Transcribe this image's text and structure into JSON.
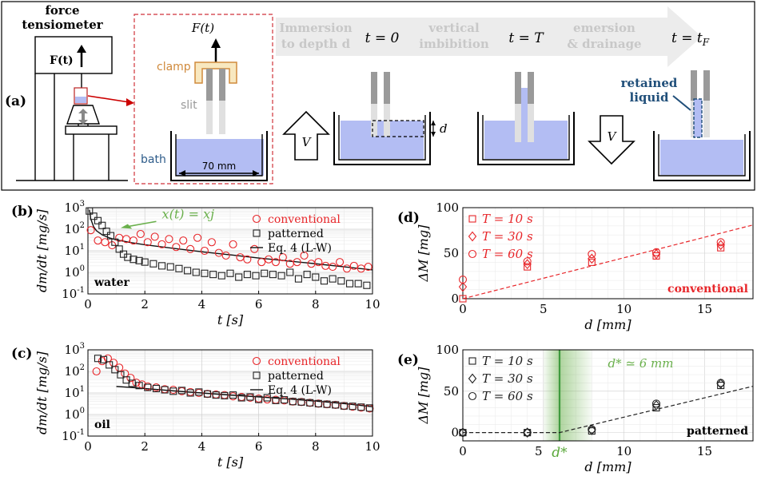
{
  "panel_a": {
    "label": "(a)",
    "tensiometer_title_1": "force",
    "tensiometer_title_2": "tensiometer",
    "force_label": "F(t)",
    "inset_force": "F(t)",
    "clamp": "clamp",
    "slit": "slit",
    "bath": "bath",
    "bath_width": "70 mm",
    "stage_immersion": "Immersion",
    "stage_immersion_2": "to depth d",
    "t0": "t = 0",
    "stage_imbibition": "vertical",
    "stage_imbibition_2": "imbibition",
    "tT": "t = T",
    "stage_emersion": "emersion",
    "stage_emersion_2": "& drainage",
    "tF": "t = t",
    "tF_sub": "F",
    "depth": "d",
    "velocity": "V",
    "retained_1": "retained",
    "retained_2": "liquid",
    "colors": {
      "liquid": "#b3bdf3",
      "retained": "#1f4e79",
      "clamp": "#d08a3c",
      "arrow": "#ececec"
    }
  },
  "chart_data": [
    {
      "panel": "(b)",
      "type": "scatter",
      "xlabel": "t [s]",
      "ylabel": "dm/dt [mg/s]",
      "xlim": [
        0,
        10
      ],
      "ylim": [
        0.1,
        1000
      ],
      "yscale": "log",
      "xticks": [
        "0",
        "2",
        "4",
        "6",
        "8",
        "10"
      ],
      "yticks": [
        "10-1",
        "100",
        "101",
        "102",
        "103"
      ],
      "inner_label": "water",
      "annotation": "x(t) = xj",
      "legend": [
        "conventional",
        "patterned",
        "Eq. 4 (L-W)"
      ],
      "series": [
        {
          "name": "conventional",
          "x": [
            0.1,
            0.35,
            0.6,
            0.85,
            1.1,
            1.35,
            1.6,
            1.85,
            2.1,
            2.35,
            2.6,
            2.85,
            3.1,
            3.35,
            3.6,
            3.85,
            4.1,
            4.35,
            4.6,
            4.85,
            5.1,
            5.35,
            5.6,
            5.85,
            6.1,
            6.35,
            6.6,
            6.85,
            7.1,
            7.35,
            7.6,
            7.85,
            8.1,
            8.35,
            8.6,
            8.85,
            9.1,
            9.35,
            9.6,
            9.85
          ],
          "y": [
            90,
            30,
            25,
            18,
            40,
            35,
            30,
            60,
            25,
            45,
            20,
            35,
            15,
            30,
            12,
            40,
            10,
            25,
            8,
            6,
            20,
            5,
            4,
            12,
            3,
            4,
            3,
            5,
            2.5,
            3,
            6,
            2.5,
            3,
            2,
            1.8,
            3,
            1.5,
            2,
            1.5,
            1.8
          ]
        },
        {
          "name": "patterned",
          "x": [
            0.05,
            0.2,
            0.35,
            0.5,
            0.65,
            0.8,
            0.95,
            1.1,
            1.25,
            1.4,
            1.6,
            1.8,
            2.0,
            2.3,
            2.6,
            2.9,
            3.2,
            3.5,
            3.8,
            4.1,
            4.4,
            4.7,
            5.0,
            5.3,
            5.6,
            5.9,
            6.2,
            6.5,
            6.8,
            7.1,
            7.4,
            7.7,
            8.0,
            8.3,
            8.6,
            8.9,
            9.2,
            9.5,
            9.8
          ],
          "y": [
            700,
            400,
            250,
            150,
            80,
            50,
            25,
            12,
            7,
            5,
            4,
            3.5,
            3,
            2.5,
            2,
            1.8,
            1.5,
            1.2,
            1.0,
            0.9,
            0.8,
            0.7,
            0.9,
            0.6,
            0.8,
            0.7,
            0.9,
            0.8,
            0.7,
            1.0,
            0.5,
            0.8,
            0.6,
            0.4,
            0.5,
            0.4,
            0.3,
            0.3,
            0.25
          ]
        },
        {
          "name": "Eq. 4 (L-W)",
          "x": [
            0.05,
            0.1,
            0.2,
            0.3,
            0.5,
            0.75,
            1,
            1.5,
            2,
            3,
            4,
            5,
            6,
            7,
            8,
            9,
            10
          ],
          "y": [
            800,
            300,
            130,
            85,
            55,
            40,
            32,
            24,
            19,
            13,
            9,
            6.5,
            4.6,
            3.4,
            2.5,
            1.8,
            1.3
          ]
        }
      ]
    },
    {
      "panel": "(c)",
      "type": "scatter",
      "xlabel": "t [s]",
      "ylabel": "dm/dt [mg/s]",
      "xlim": [
        0,
        10
      ],
      "ylim": [
        0.1,
        1000
      ],
      "yscale": "log",
      "xticks": [
        "0",
        "2",
        "4",
        "6",
        "8",
        "10"
      ],
      "yticks": [
        "10-1",
        "100",
        "101",
        "102",
        "103"
      ],
      "inner_label": "oil",
      "legend": [
        "conventional",
        "patterned",
        "Eq. 4 (L-W)"
      ],
      "series": [
        {
          "name": "conventional",
          "x": [
            0.3,
            0.5,
            0.7,
            0.9,
            1.1,
            1.3,
            1.5,
            1.7,
            1.9,
            2.1,
            2.4,
            2.7,
            3.0,
            3.3,
            3.6,
            3.9,
            4.2,
            4.5,
            4.8,
            5.1,
            5.4,
            5.7,
            6.0,
            6.3,
            6.6,
            6.9,
            7.2,
            7.5,
            7.8,
            8.1,
            8.4,
            8.7,
            9.0,
            9.3,
            9.6,
            9.9
          ],
          "y": [
            100,
            300,
            400,
            250,
            150,
            80,
            50,
            30,
            25,
            20,
            18,
            15,
            14,
            12,
            11,
            10,
            9,
            8.5,
            8,
            7,
            6.5,
            6,
            5.5,
            5,
            4.8,
            4.5,
            4,
            3.8,
            3.5,
            3.2,
            3,
            2.8,
            2.5,
            2.3,
            2.1,
            1.9
          ]
        },
        {
          "name": "patterned",
          "x": [
            0.35,
            0.55,
            0.75,
            0.95,
            1.15,
            1.35,
            1.55,
            1.8,
            2.1,
            2.4,
            2.7,
            3.0,
            3.3,
            3.6,
            3.9,
            4.2,
            4.5,
            4.8,
            5.1,
            5.4,
            5.7,
            6.0,
            6.3,
            6.6,
            6.9,
            7.2,
            7.5,
            7.8,
            8.1,
            8.4,
            8.7,
            9.0,
            9.3,
            9.6,
            9.9
          ],
          "y": [
            400,
            350,
            200,
            120,
            70,
            40,
            28,
            22,
            18,
            16,
            14,
            12,
            13,
            10,
            11,
            9,
            8,
            7.5,
            8,
            6,
            6.5,
            5,
            6,
            4.5,
            4.8,
            4,
            3.8,
            3.5,
            3.2,
            3,
            2.8,
            2.5,
            2.4,
            2.2,
            2
          ]
        },
        {
          "name": "Eq. 4 (L-W)",
          "x": [
            1,
            1.5,
            2,
            3,
            4,
            5,
            6,
            7,
            8,
            9,
            10
          ],
          "y": [
            20,
            18,
            16,
            12.5,
            10,
            8,
            6.6,
            5.3,
            4.2,
            3.2,
            2.3
          ]
        }
      ]
    },
    {
      "panel": "(d)",
      "type": "scatter",
      "xlabel": "d [mm]",
      "ylabel": "ΔM [mg]",
      "xlim": [
        0,
        18
      ],
      "ylim": [
        0,
        100
      ],
      "xticks": [
        "0",
        "5",
        "10",
        "15"
      ],
      "yticks": [
        "0",
        "50",
        "100"
      ],
      "inner_label": "conventional",
      "legend": [
        "T = 10 s",
        "T = 30 s",
        "T = 60 s"
      ],
      "series": [
        {
          "name": "T = 10 s",
          "x": [
            0,
            4,
            8,
            12,
            16
          ],
          "y": [
            0,
            35,
            40,
            47,
            56
          ]
        },
        {
          "name": "T = 30 s",
          "x": [
            0,
            4,
            8,
            12,
            16
          ],
          "y": [
            13,
            38,
            44,
            49,
            59
          ]
        },
        {
          "name": "T = 60 s",
          "x": [
            0,
            4,
            8,
            12,
            16
          ],
          "y": [
            21,
            41,
            49,
            51,
            62
          ]
        }
      ],
      "fit": {
        "x": [
          0,
          18
        ],
        "y": [
          0,
          81
        ]
      }
    },
    {
      "panel": "(e)",
      "type": "scatter",
      "xlabel": "d [mm]",
      "ylabel": "ΔM [mg]",
      "xlim": [
        0,
        18
      ],
      "ylim": [
        -10,
        100
      ],
      "xticks": [
        "0",
        "5",
        "10",
        "15"
      ],
      "yticks": [
        "0",
        "50",
        "100"
      ],
      "inner_label": "patterned",
      "annotation": "d* ≃ 6 mm",
      "dstar_label": "d*",
      "dstar": 6,
      "dstar_band": [
        5,
        8
      ],
      "legend": [
        "T = 10 s",
        "T = 30 s",
        "T = 60 s"
      ],
      "series": [
        {
          "name": "T = 10 s",
          "x": [
            0,
            4,
            8,
            12,
            16
          ],
          "y": [
            0,
            0,
            2,
            30,
            57
          ]
        },
        {
          "name": "T = 30 s",
          "x": [
            0,
            4,
            8,
            12,
            16
          ],
          "y": [
            0,
            0,
            3,
            33,
            59
          ]
        },
        {
          "name": "T = 60 s",
          "x": [
            0,
            4,
            8,
            12,
            16
          ],
          "y": [
            0,
            0,
            4,
            35,
            60
          ]
        }
      ],
      "fit": {
        "x": [
          0,
          6,
          18
        ],
        "y": [
          0,
          0,
          56
        ]
      }
    }
  ]
}
